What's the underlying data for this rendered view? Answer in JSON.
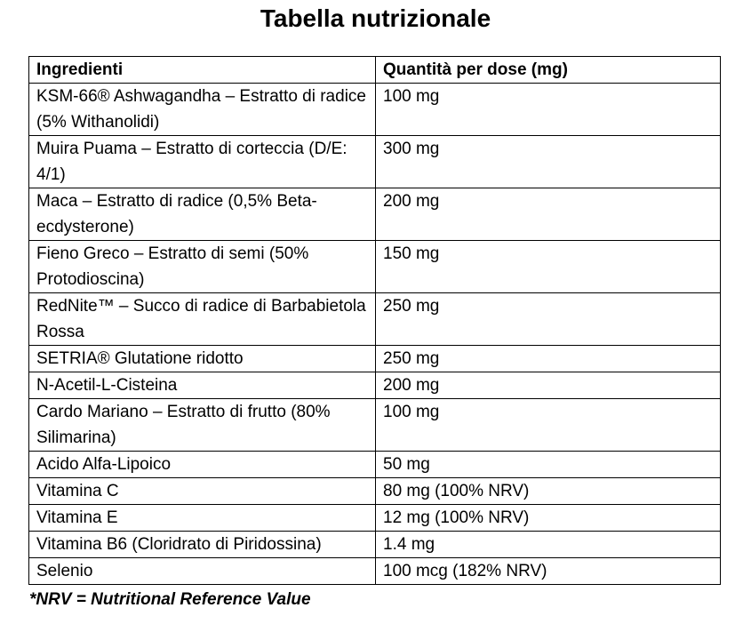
{
  "title": "Tabella nutrizionale",
  "table": {
    "headers": [
      "Ingredienti",
      "Quantità per dose (mg)"
    ],
    "rows": [
      [
        "KSM-66® Ashwagandha – Estratto di radice (5% Withanolidi)",
        "100 mg"
      ],
      [
        "Muira Puama – Estratto di corteccia (D/E: 4/1)",
        "300 mg"
      ],
      [
        "Maca – Estratto di radice (0,5% Beta-ecdysterone)",
        "200 mg"
      ],
      [
        "Fieno Greco – Estratto di semi (50% Protodioscina)",
        "150 mg"
      ],
      [
        "RedNite™ – Succo di radice di Barbabietola Rossa",
        "250 mg"
      ],
      [
        "SETRIA® Glutatione ridotto",
        "250 mg"
      ],
      [
        "N-Acetil-L-Cisteina",
        "200 mg"
      ],
      [
        "Cardo Mariano – Estratto di frutto (80% Silimarina)",
        "100 mg"
      ],
      [
        "Acido Alfa-Lipoico",
        "50 mg"
      ],
      [
        "Vitamina C",
        "80 mg (100% NRV)"
      ],
      [
        "Vitamina E",
        "12 mg (100% NRV)"
      ],
      [
        "Vitamina B6 (Cloridrato di Piridossina)",
        "1.4 mg"
      ],
      [
        "Selenio",
        "100 mcg (182% NRV)"
      ]
    ]
  },
  "footnote": "*NRV = Nutritional Reference Value",
  "colors": {
    "text": "#000000",
    "border": "#000000",
    "background": "#ffffff"
  }
}
